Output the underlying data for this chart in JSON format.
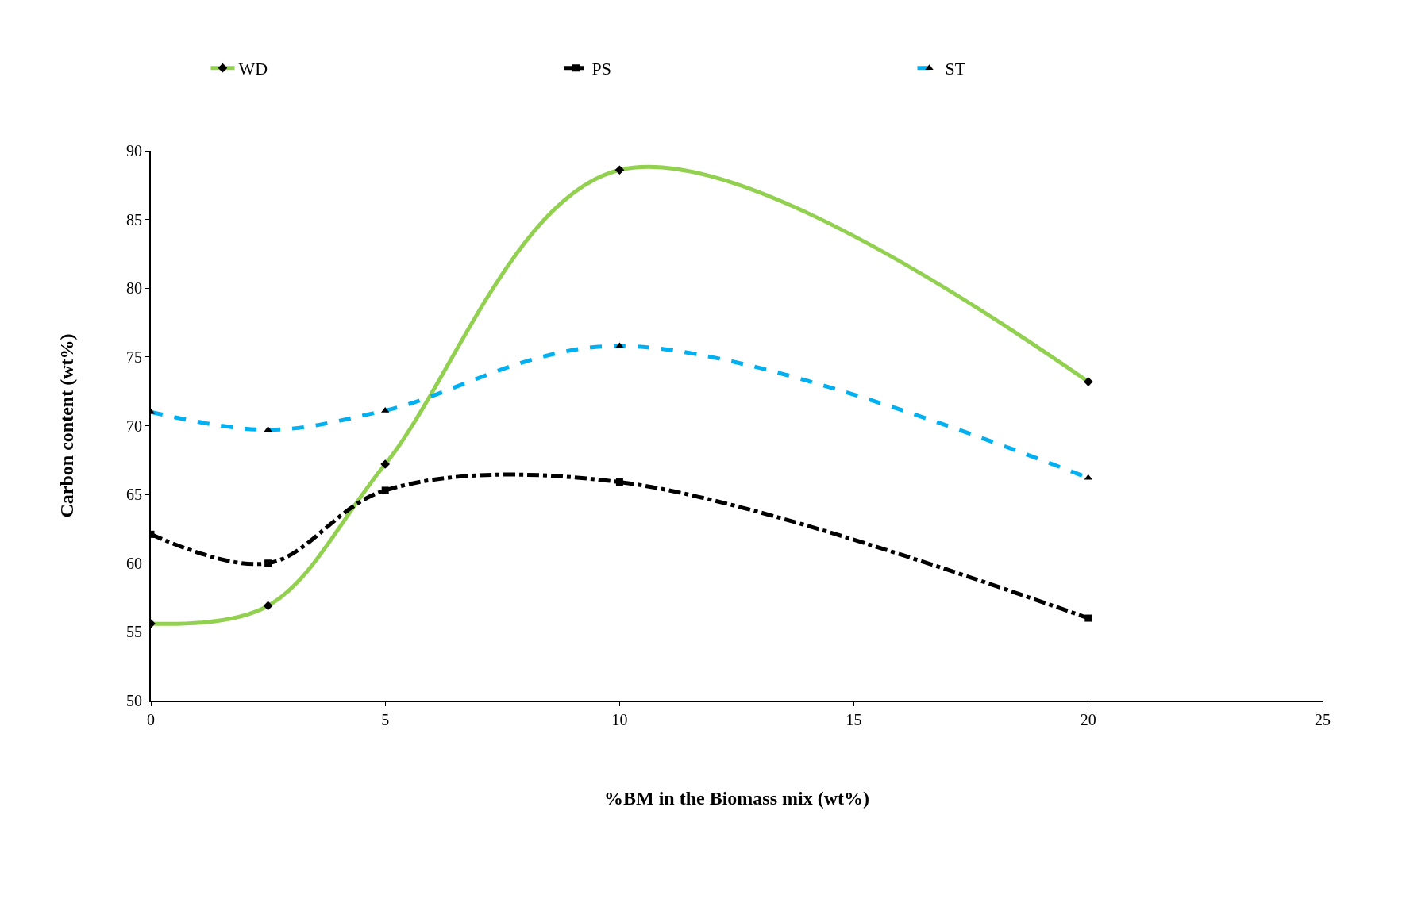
{
  "chart_data": {
    "type": "line",
    "xlabel": "%BM in the Biomass mix (wt%)",
    "ylabel": "Carbon content (wt%)",
    "x": [
      0,
      2.5,
      5,
      10,
      20
    ],
    "series": [
      {
        "name": "WD",
        "color": "#92d050",
        "values": [
          55.6,
          56.9,
          67.2,
          88.6,
          73.2
        ],
        "marker": "diamond",
        "line_style": "solid"
      },
      {
        "name": "PS",
        "color": "#000000",
        "values": [
          62.1,
          60.0,
          65.3,
          65.9,
          56.0
        ],
        "marker": "square",
        "line_style": "dashdot"
      },
      {
        "name": "ST",
        "color": "#00b0f0",
        "values": [
          71.0,
          69.7,
          71.1,
          75.8,
          66.2
        ],
        "marker": "triangle",
        "line_style": "dashed"
      }
    ],
    "xlim": [
      0,
      25
    ],
    "xticks": [
      0,
      5,
      10,
      15,
      20,
      25
    ],
    "ylim": [
      50,
      90
    ],
    "yticks": [
      50,
      55,
      60,
      65,
      70,
      75,
      80,
      85,
      90
    ],
    "legend": "top"
  }
}
